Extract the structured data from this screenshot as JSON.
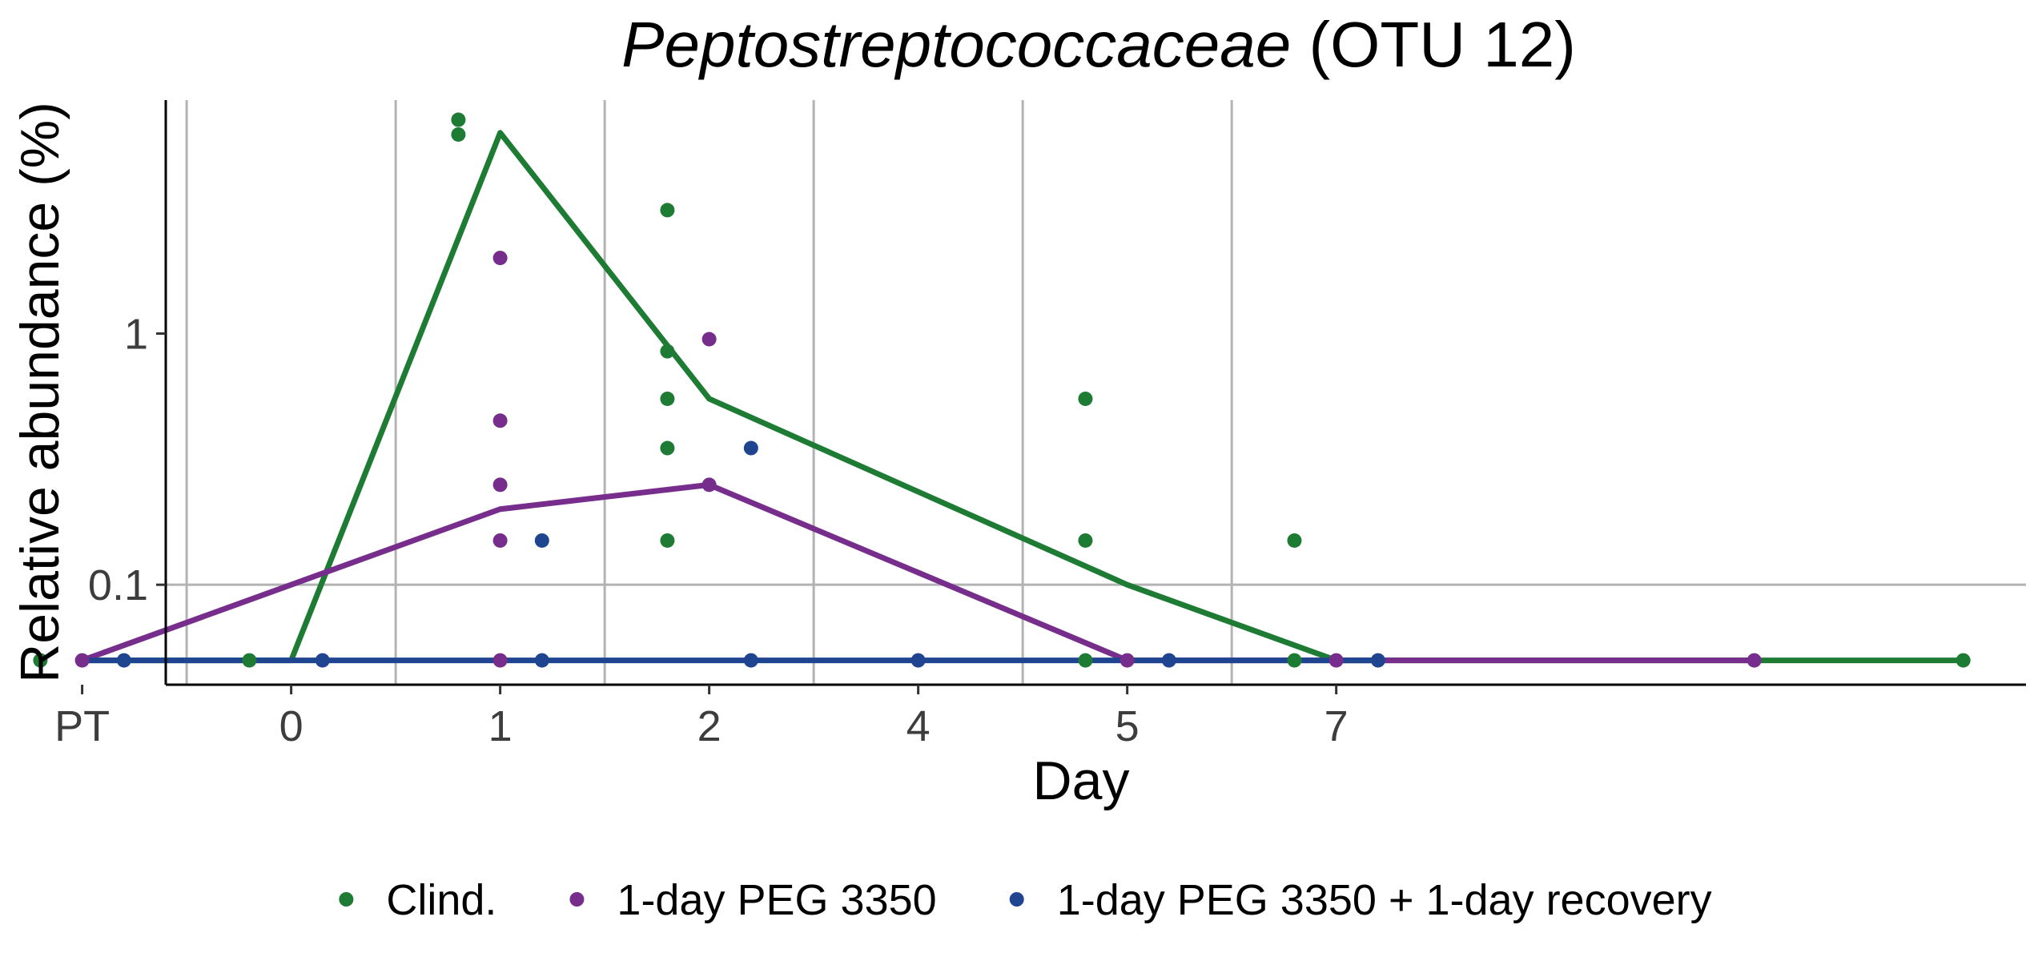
{
  "chart_data": {
    "type": "line",
    "title": {
      "italic": "Peptostreptococcaceae",
      "normal": " (OTU 12)"
    },
    "xlabel": "Day",
    "ylabel": "Relative abundance (%)",
    "y_scale": "log10",
    "ylim": [
      0.04,
      8.5
    ],
    "y_ticks": [
      {
        "value": 0.1,
        "label": "0.1"
      },
      {
        "value": 1,
        "label": "1"
      }
    ],
    "x_axis": {
      "type": "categorical",
      "categories": [
        "PT",
        "0",
        "1",
        "2",
        "4",
        "5",
        "7"
      ],
      "xlim": [
        -0.6,
        8.3
      ],
      "vertical_grid_at": [
        -0.5,
        0.5,
        1.5,
        2.5,
        3.5,
        4.5,
        5.5
      ]
    },
    "grid": {
      "major_x": false,
      "minor_x": true,
      "major_y": false,
      "horizontal_at": [
        0.1
      ]
    },
    "legend": {
      "position": "bottom",
      "orientation": "horizontal"
    },
    "series": [
      {
        "name": "Clind.",
        "color": "#1e7b34",
        "line": [
          {
            "x": -1,
            "y": 0.05
          },
          {
            "x": 0,
            "y": 0.05
          },
          {
            "x": 1,
            "y": 6.3
          },
          {
            "x": 2,
            "y": 0.55
          },
          {
            "x": 4,
            "y": 0.1
          },
          {
            "x": 5,
            "y": 0.05
          },
          {
            "x": 8,
            "y": 0.05
          }
        ],
        "points": [
          {
            "x": -0.2,
            "y": 0.05
          },
          {
            "x": 0.8,
            "y": 7.1
          },
          {
            "x": 0.8,
            "y": 6.2
          },
          {
            "x": 1.8,
            "y": 3.1
          },
          {
            "x": 1.8,
            "y": 0.85
          },
          {
            "x": 1.8,
            "y": 0.55
          },
          {
            "x": 1.8,
            "y": 0.35
          },
          {
            "x": 1.8,
            "y": 0.15
          },
          {
            "x": 3.8,
            "y": 0.55
          },
          {
            "x": 3.8,
            "y": 0.15
          },
          {
            "x": 3.8,
            "y": 0.05
          },
          {
            "x": 4.8,
            "y": 0.15
          },
          {
            "x": 4.8,
            "y": 0.05
          },
          {
            "x": -1.2,
            "y": 0.05
          },
          {
            "x": 8.0,
            "y": 0.05
          }
        ]
      },
      {
        "name": "1-day PEG 3350",
        "color": "#772d8b",
        "line": [
          {
            "x": -1,
            "y": 0.05
          },
          {
            "x": 0,
            "y": 0.1
          },
          {
            "x": 1,
            "y": 0.2
          },
          {
            "x": 2,
            "y": 0.25
          },
          {
            "x": 4,
            "y": 0.05
          },
          {
            "x": 5,
            "y": 0.05
          },
          {
            "x": 7,
            "y": 0.05
          }
        ],
        "points": [
          {
            "x": -1,
            "y": 0.05
          },
          {
            "x": 1,
            "y": 2.0
          },
          {
            "x": 1,
            "y": 0.45
          },
          {
            "x": 1,
            "y": 0.25
          },
          {
            "x": 1,
            "y": 0.15
          },
          {
            "x": 1,
            "y": 0.05
          },
          {
            "x": 2,
            "y": 0.95
          },
          {
            "x": 2,
            "y": 0.25
          },
          {
            "x": 4,
            "y": 0.05
          },
          {
            "x": 5,
            "y": 0.05
          },
          {
            "x": 7,
            "y": 0.05
          }
        ]
      },
      {
        "name": "1-day PEG 3350 + 1-day recovery",
        "color": "#1f4591",
        "line": [
          {
            "x": -1,
            "y": 0.05
          },
          {
            "x": 5.2,
            "y": 0.05
          }
        ],
        "points": [
          {
            "x": -0.8,
            "y": 0.05
          },
          {
            "x": 0.15,
            "y": 0.05
          },
          {
            "x": 1.2,
            "y": 0.15
          },
          {
            "x": 1.2,
            "y": 0.05
          },
          {
            "x": 2.2,
            "y": 0.35
          },
          {
            "x": 2.2,
            "y": 0.05
          },
          {
            "x": 3.0,
            "y": 0.05
          },
          {
            "x": 4.2,
            "y": 0.05
          },
          {
            "x": 5.2,
            "y": 0.05
          }
        ]
      }
    ]
  }
}
